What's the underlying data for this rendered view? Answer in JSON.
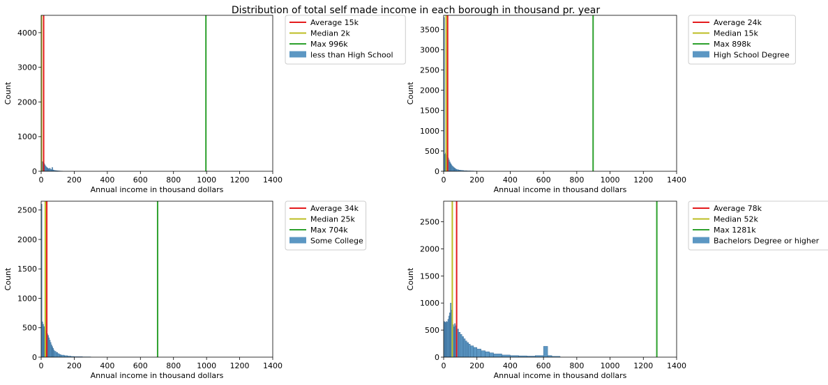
{
  "figure": {
    "suptitle": "Distribution of total self made income in each borough in thousand pr. year"
  },
  "chart_data": [
    {
      "type": "bar",
      "xlabel": "Annual income in thousand dollars",
      "ylabel": "Count",
      "xlim": [
        0,
        1400
      ],
      "ylim": [
        0,
        4500
      ],
      "xticks": [
        0,
        200,
        400,
        600,
        800,
        1000,
        1200,
        1400
      ],
      "yticks": [
        0,
        1000,
        2000,
        3000,
        4000
      ],
      "legend_position": "outside-right",
      "hist": {
        "label": "less than High School",
        "color": "#4a8cbd",
        "bin_edges": [
          0,
          5,
          10,
          15,
          20,
          25,
          30,
          35,
          40,
          45,
          50,
          55,
          60,
          65,
          70,
          75,
          80,
          85,
          90,
          95,
          100,
          110,
          120,
          130
        ],
        "counts": [
          4300,
          280,
          260,
          230,
          190,
          150,
          120,
          100,
          80,
          70,
          90,
          60,
          45,
          110,
          40,
          30,
          25,
          20,
          18,
          15,
          12,
          8,
          5
        ]
      },
      "lines": [
        {
          "label": "Average 15k",
          "x": 15,
          "color": "#e41a1c"
        },
        {
          "label": "Median 2k",
          "x": 2,
          "color": "#bcbd22"
        },
        {
          "label": "Max 996k",
          "x": 996,
          "color": "#2ca02c"
        }
      ]
    },
    {
      "type": "bar",
      "xlabel": "Annual income in thousand dollars",
      "ylabel": "Count",
      "xlim": [
        0,
        1400
      ],
      "ylim": [
        0,
        3850
      ],
      "xticks": [
        0,
        200,
        400,
        600,
        800,
        1000,
        1200,
        1400
      ],
      "yticks": [
        0,
        500,
        1000,
        1500,
        2000,
        2500,
        3000,
        3500
      ],
      "legend_position": "outside-right",
      "hist": {
        "label": "High School Degree",
        "color": "#4a8cbd",
        "bin_edges": [
          0,
          5,
          10,
          15,
          20,
          25,
          30,
          35,
          40,
          45,
          50,
          55,
          60,
          65,
          70,
          75,
          80,
          90,
          100,
          110,
          120,
          140,
          160,
          180,
          200
        ],
        "counts": [
          3800,
          420,
          450,
          410,
          380,
          330,
          280,
          230,
          190,
          160,
          130,
          110,
          90,
          75,
          60,
          50,
          40,
          30,
          25,
          20,
          15,
          10,
          8,
          5
        ]
      },
      "lines": [
        {
          "label": "Average 24k",
          "x": 24,
          "color": "#e41a1c"
        },
        {
          "label": "Median 15k",
          "x": 15,
          "color": "#bcbd22"
        },
        {
          "label": "Max 898k",
          "x": 898,
          "color": "#2ca02c"
        }
      ]
    },
    {
      "type": "bar",
      "xlabel": "Annual income in thousand dollars",
      "ylabel": "Count",
      "xlim": [
        0,
        1400
      ],
      "ylim": [
        0,
        2650
      ],
      "xticks": [
        0,
        200,
        400,
        600,
        800,
        1000,
        1200,
        1400
      ],
      "yticks": [
        0,
        500,
        1000,
        1500,
        2000,
        2500
      ],
      "legend_position": "outside-right",
      "hist": {
        "label": "Some College",
        "color": "#4a8cbd",
        "bin_edges": [
          0,
          5,
          10,
          15,
          20,
          25,
          30,
          35,
          40,
          45,
          50,
          55,
          60,
          65,
          70,
          75,
          80,
          90,
          100,
          110,
          120,
          140,
          160,
          180,
          200,
          250,
          300
        ],
        "counts": [
          2600,
          600,
          560,
          520,
          480,
          450,
          430,
          400,
          370,
          330,
          290,
          250,
          210,
          180,
          150,
          120,
          100,
          80,
          60,
          45,
          35,
          25,
          18,
          12,
          8,
          5
        ]
      },
      "lines": [
        {
          "label": "Average 34k",
          "x": 34,
          "color": "#e41a1c"
        },
        {
          "label": "Median 25k",
          "x": 25,
          "color": "#bcbd22"
        },
        {
          "label": "Max 704k",
          "x": 704,
          "color": "#2ca02c"
        }
      ]
    },
    {
      "type": "bar",
      "xlabel": "Annual income in thousand dollars",
      "ylabel": "Count",
      "xlim": [
        0,
        1400
      ],
      "ylim": [
        0,
        2880
      ],
      "xticks": [
        0,
        200,
        400,
        600,
        800,
        1000,
        1200,
        1400
      ],
      "yticks": [
        0,
        500,
        1000,
        1500,
        2000,
        2500
      ],
      "legend_position": "outside-right",
      "hist": {
        "label": "Bachelors Degree or higher",
        "color": "#4a8cbd",
        "bin_edges": [
          0,
          5,
          10,
          15,
          20,
          25,
          30,
          35,
          40,
          45,
          50,
          55,
          60,
          65,
          70,
          75,
          80,
          90,
          100,
          110,
          120,
          130,
          140,
          150,
          160,
          180,
          200,
          225,
          250,
          275,
          300,
          350,
          400,
          450,
          500,
          550,
          600,
          625,
          650,
          700
        ],
        "counts": [
          660,
          650,
          640,
          660,
          650,
          700,
          760,
          820,
          1000,
          870,
          640,
          600,
          560,
          620,
          580,
          500,
          520,
          460,
          420,
          380,
          340,
          300,
          270,
          240,
          210,
          180,
          150,
          120,
          100,
          80,
          60,
          40,
          30,
          25,
          20,
          30,
          200,
          30,
          15
        ]
      },
      "lines": [
        {
          "label": "Average 78k",
          "x": 78,
          "color": "#e41a1c"
        },
        {
          "label": "Median 52k",
          "x": 52,
          "color": "#bcbd22"
        },
        {
          "label": "Max 1281k",
          "x": 1281,
          "color": "#2ca02c"
        }
      ]
    }
  ]
}
